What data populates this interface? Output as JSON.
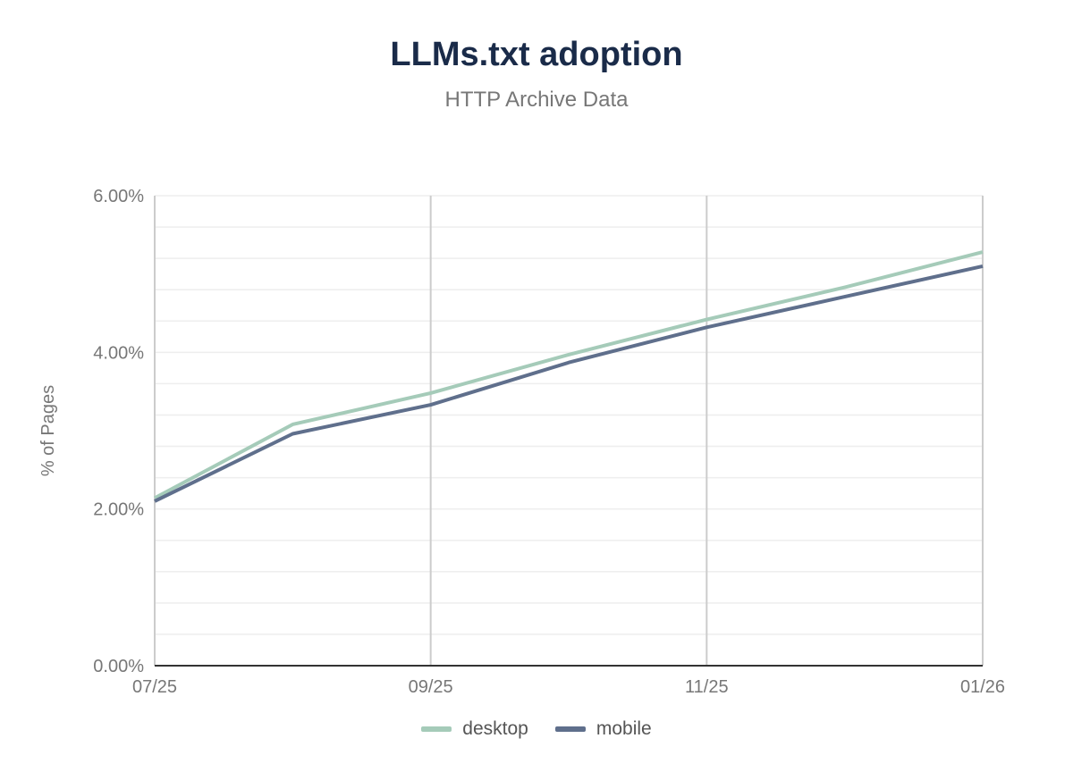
{
  "chart_data": {
    "type": "line",
    "title": "LLMs.txt adoption",
    "subtitle": "HTTP Archive Data",
    "xlabel": "",
    "ylabel": "% of Pages",
    "x": [
      "07/25",
      "08/25",
      "09/25",
      "10/25",
      "11/25",
      "12/25",
      "01/26"
    ],
    "x_tick_labels": [
      "07/25",
      "09/25",
      "11/25",
      "01/26"
    ],
    "y_tick_labels": [
      "0.00%",
      "2.00%",
      "4.00%",
      "6.00%"
    ],
    "ylim": [
      0,
      6
    ],
    "y_ticks": [
      0,
      2,
      4,
      6
    ],
    "minor_grid_step": 0.4,
    "grid": true,
    "legend_position": "bottom",
    "series": [
      {
        "name": "desktop",
        "color": "#a5cbb9",
        "values": [
          2.14,
          3.08,
          3.48,
          3.97,
          4.42,
          4.83,
          5.28
        ]
      },
      {
        "name": "mobile",
        "color": "#5f6f8c",
        "values": [
          2.1,
          2.96,
          3.33,
          3.87,
          4.32,
          4.71,
          5.1
        ]
      }
    ]
  }
}
